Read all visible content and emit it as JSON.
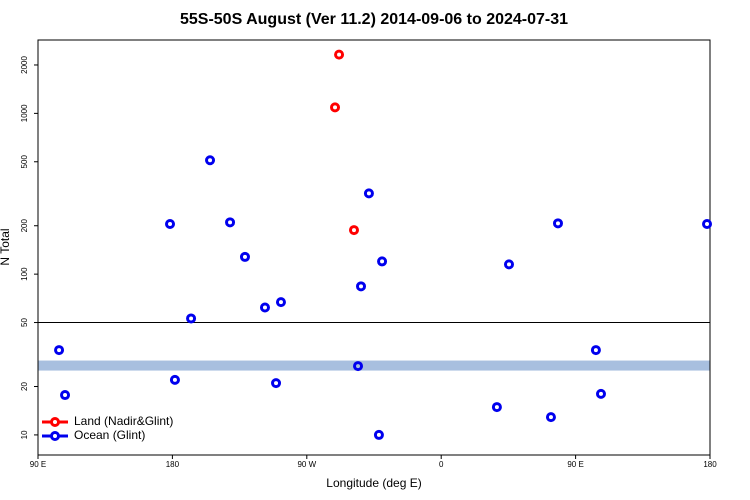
{
  "chart_data": {
    "type": "scatter",
    "title": "55S-50S August (Ver 11.2)   2014-09-06 to 2024-07-31",
    "x_label": "Longitude (deg E)",
    "y_label": "N Total",
    "xlim": [
      90,
      540
    ],
    "xticks": [
      {
        "value": 90,
        "label": "90 E"
      },
      {
        "value": 180,
        "label": "180"
      },
      {
        "value": 270,
        "label": "90 W"
      },
      {
        "value": 360,
        "label": "0"
      },
      {
        "value": 450,
        "label": "90 E"
      },
      {
        "value": 540,
        "label": "180"
      }
    ],
    "ylim": [
      7.5,
      2860
    ],
    "y_log": true,
    "yticks": [
      10,
      20,
      50,
      100,
      200,
      500,
      1000,
      2000
    ],
    "hline": 50,
    "band": {
      "value": 27,
      "color": "#a8bfdf"
    },
    "legend": "bottom-left",
    "series": [
      {
        "name": "Land (Nadir&Glint)",
        "color": "#ff0000",
        "x": [
          291.6,
          288.9,
          301.6
        ],
        "values": [
          2320,
          1090,
          188
        ]
      },
      {
        "name": "Ocean (Glint)",
        "color": "#0000ee",
        "x": [
          104.1,
          108.1,
          178.4,
          181.7,
          192.5,
          205.2,
          218.6,
          228.6,
          242,
          249.4,
          252.7,
          304.3,
          306.3,
          311.6,
          318.3,
          320.4,
          397.3,
          405.4,
          433.5,
          438.2,
          463.6,
          467,
          538
        ],
        "values": [
          33.7,
          17.7,
          205,
          22,
          53,
          511,
          210,
          128,
          62,
          21,
          67,
          26.8,
          84,
          318,
          10,
          120,
          14.9,
          115,
          12.9,
          207,
          33.7,
          18,
          205
        ]
      }
    ]
  }
}
